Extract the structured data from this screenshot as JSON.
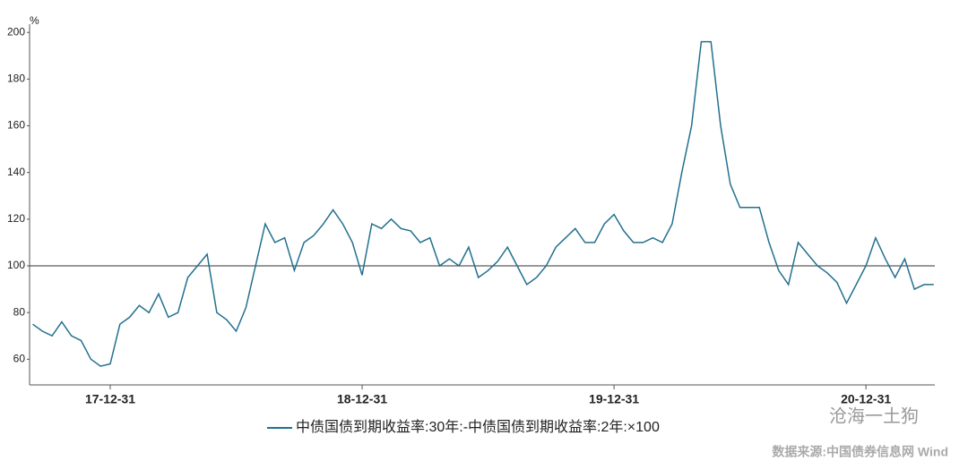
{
  "chart_data": {
    "type": "line",
    "y_unit": "%",
    "categories": [
      null,
      null,
      null,
      null,
      null,
      null,
      null,
      null,
      "17-12-31",
      null,
      null,
      null,
      null,
      null,
      null,
      null,
      null,
      null,
      null,
      null,
      null,
      null,
      null,
      null,
      null,
      null,
      null,
      null,
      null,
      null,
      null,
      null,
      null,
      null,
      "18-12-31",
      null,
      null,
      null,
      null,
      null,
      null,
      null,
      null,
      null,
      null,
      null,
      null,
      null,
      null,
      null,
      null,
      null,
      null,
      null,
      null,
      null,
      null,
      null,
      null,
      null,
      "19-12-31",
      null,
      null,
      null,
      null,
      null,
      null,
      null,
      null,
      null,
      null,
      null,
      null,
      null,
      null,
      null,
      null,
      null,
      null,
      null,
      null,
      null,
      null,
      null,
      null,
      null,
      "20-12-31",
      null,
      null,
      null,
      null,
      null,
      null,
      null
    ],
    "series": [
      {
        "name": "中债国债到期收益率:30年:-中债国债到期收益率:2年:×100",
        "color": "#22708f",
        "values": [
          75,
          72,
          70,
          76,
          70,
          68,
          60,
          57,
          58,
          75,
          78,
          83,
          80,
          88,
          78,
          80,
          95,
          100,
          105,
          80,
          77,
          72,
          82,
          100,
          118,
          110,
          112,
          98,
          110,
          113,
          118,
          124,
          118,
          110,
          96,
          118,
          116,
          120,
          116,
          115,
          110,
          112,
          100,
          103,
          100,
          108,
          95,
          98,
          102,
          108,
          100,
          92,
          95,
          100,
          108,
          112,
          116,
          110,
          110,
          118,
          122,
          115,
          110,
          110,
          112,
          110,
          118,
          140,
          160,
          196,
          196,
          160,
          135,
          125,
          125,
          125,
          110,
          98,
          92,
          110,
          105,
          100,
          97,
          93,
          84,
          92,
          100,
          112,
          103,
          95,
          103,
          90,
          92,
          92
        ]
      }
    ],
    "reference_value": 100,
    "ylim": [
      49,
      202
    ],
    "yticks": [
      60,
      80,
      100,
      120,
      140,
      160,
      180,
      200
    ],
    "watermark": "沧海一土狗",
    "source": "数据来源:中国债券信息网 Wind"
  }
}
